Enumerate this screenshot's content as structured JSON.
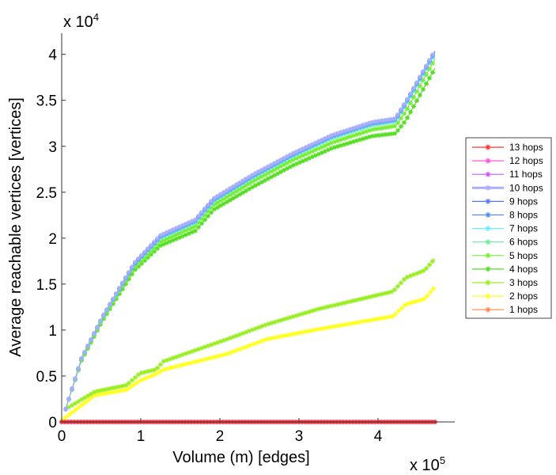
{
  "chart_data": {
    "type": "line",
    "title": "",
    "xlabel": "Volume (m) [edges]",
    "ylabel": "Average reachable vertices [vertices]",
    "x_multiplier_label": {
      "base": "x 10",
      "exp": "5"
    },
    "y_multiplier_label": {
      "base": "x 10",
      "exp": "4"
    },
    "xlim": [
      0,
      4.97
    ],
    "ylim": [
      0,
      4.23
    ],
    "xticks": [
      "0",
      "1",
      "2",
      "3",
      "4"
    ],
    "xtick_values": [
      0,
      1,
      2,
      3,
      4
    ],
    "yticks": [
      "0",
      "0.5",
      "1",
      "1.5",
      "2",
      "2.5",
      "3",
      "3.5",
      "4"
    ],
    "ytick_values": [
      0,
      0.5,
      1,
      1.5,
      2,
      2.5,
      3,
      3.5,
      4
    ],
    "grid": false,
    "legend_placement": "right-outside",
    "marker": "asterisk",
    "series": [
      {
        "name": "13 hops",
        "color": "#ff3333",
        "x": [
          0,
          4.75
        ],
        "y": [
          0,
          0
        ]
      },
      {
        "name": "12 hops",
        "color": "#ff55dd",
        "x": [
          0,
          4.75
        ],
        "y": [
          0,
          0
        ]
      },
      {
        "name": "11 hops",
        "color": "#cc55ff",
        "x": [
          0,
          4.75
        ],
        "y": [
          0,
          0
        ]
      },
      {
        "name": "10 hops",
        "color": "#aab0ff",
        "x": [
          0.05,
          0.25,
          0.52,
          0.92,
          1.25,
          1.69,
          1.92,
          2.42,
          2.92,
          3.42,
          3.92,
          4.22,
          4.35,
          4.72
        ],
        "y": [
          0.14,
          0.69,
          1.15,
          1.73,
          2.03,
          2.2,
          2.43,
          2.69,
          2.92,
          3.12,
          3.26,
          3.3,
          3.48,
          4.04
        ]
      },
      {
        "name": "9 hops",
        "color": "#5577ff",
        "x": [
          0.05,
          0.25,
          0.52,
          0.92,
          1.25,
          1.69,
          1.92,
          2.42,
          2.92,
          3.42,
          3.92,
          4.22,
          4.35,
          4.72
        ],
        "y": [
          0.14,
          0.69,
          1.15,
          1.73,
          2.03,
          2.2,
          2.43,
          2.69,
          2.92,
          3.12,
          3.26,
          3.3,
          3.48,
          4.04
        ]
      },
      {
        "name": "8 hops",
        "color": "#5588ff",
        "x": [
          0.05,
          0.25,
          0.52,
          0.92,
          1.25,
          1.69,
          1.92,
          2.42,
          2.92,
          3.42,
          3.92,
          4.22,
          4.35,
          4.72
        ],
        "y": [
          0.14,
          0.69,
          1.15,
          1.72,
          2.02,
          2.19,
          2.42,
          2.68,
          2.91,
          3.11,
          3.25,
          3.29,
          3.47,
          4.03
        ]
      },
      {
        "name": "7 hops",
        "color": "#66eeff",
        "x": [
          0.05,
          0.25,
          0.52,
          0.92,
          1.25,
          1.69,
          1.92,
          2.42,
          2.92,
          3.42,
          3.92,
          4.22,
          4.35,
          4.72
        ],
        "y": [
          0.14,
          0.69,
          1.15,
          1.72,
          2.01,
          2.18,
          2.41,
          2.67,
          2.9,
          3.1,
          3.24,
          3.28,
          3.46,
          4.02
        ]
      },
      {
        "name": "6 hops",
        "color": "#66ee99",
        "x": [
          0.05,
          0.25,
          0.52,
          0.92,
          1.25,
          1.69,
          1.92,
          2.42,
          2.92,
          3.42,
          3.92,
          4.22,
          4.35,
          4.72
        ],
        "y": [
          0.14,
          0.69,
          1.14,
          1.71,
          2.0,
          2.17,
          2.4,
          2.66,
          2.89,
          3.09,
          3.23,
          3.27,
          3.45,
          4.01
        ]
      },
      {
        "name": "5 hops",
        "color": "#77ee33",
        "x": [
          0.05,
          0.25,
          0.52,
          0.92,
          1.25,
          1.69,
          1.92,
          2.42,
          2.92,
          3.42,
          3.92,
          4.22,
          4.35,
          4.72
        ],
        "y": [
          0.14,
          0.68,
          1.13,
          1.68,
          1.96,
          2.13,
          2.36,
          2.62,
          2.85,
          3.04,
          3.18,
          3.22,
          3.38,
          3.95
        ]
      },
      {
        "name": "4 hops",
        "color": "#55dd22",
        "x": [
          0.05,
          0.25,
          0.52,
          0.92,
          1.25,
          1.69,
          1.92,
          2.42,
          2.92,
          3.42,
          3.92,
          4.22,
          4.35,
          4.72
        ],
        "y": [
          0.14,
          0.67,
          1.11,
          1.65,
          1.92,
          2.08,
          2.31,
          2.56,
          2.79,
          2.98,
          3.11,
          3.14,
          3.28,
          3.85
        ]
      },
      {
        "name": "3 hops",
        "color": "#99ee22",
        "x": [
          0.05,
          0.42,
          0.82,
          0.99,
          1.19,
          1.29,
          2.09,
          2.59,
          3.25,
          4.19,
          4.35,
          4.59,
          4.72
        ],
        "y": [
          0.14,
          0.33,
          0.4,
          0.53,
          0.57,
          0.66,
          0.9,
          1.06,
          1.23,
          1.42,
          1.57,
          1.65,
          1.78
        ]
      },
      {
        "name": "2 hops",
        "color": "#ffff22",
        "x": [
          0.02,
          0.42,
          0.82,
          0.99,
          1.19,
          1.29,
          2.09,
          2.59,
          3.25,
          4.19,
          4.35,
          4.59,
          4.72
        ],
        "y": [
          0.03,
          0.29,
          0.35,
          0.45,
          0.52,
          0.57,
          0.74,
          0.9,
          1.01,
          1.15,
          1.28,
          1.34,
          1.47
        ]
      },
      {
        "name": "1 hops",
        "color": "#ff8844",
        "x": [
          0,
          4.75
        ],
        "y": [
          0,
          0
        ]
      }
    ]
  }
}
